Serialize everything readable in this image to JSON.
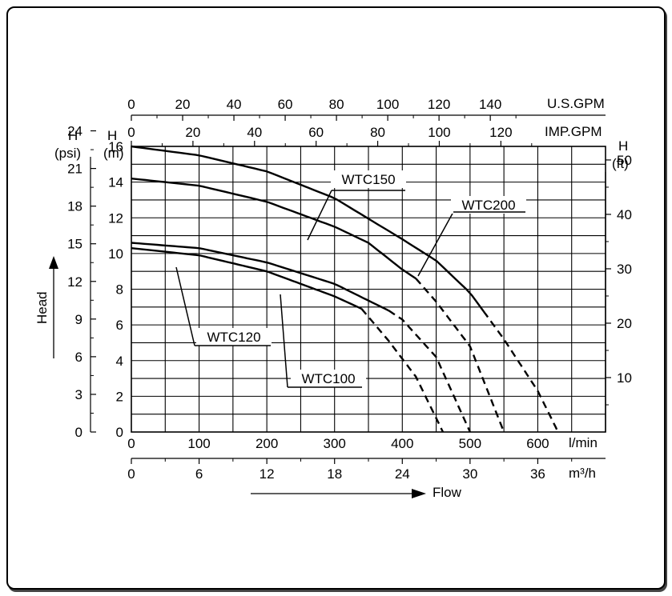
{
  "chart_data": {
    "type": "line",
    "xlabel": "Flow",
    "ylabel": "Head",
    "x_unit": "l/min",
    "x_range": [
      0,
      700
    ],
    "y_unit": "H (m)",
    "y_range": [
      0,
      16
    ],
    "grid": true,
    "x_ticks": [
      "0",
      "100",
      "200",
      "300",
      "400",
      "500",
      "600"
    ],
    "y_ticks": [
      "0",
      "2",
      "4",
      "6",
      "8",
      "10",
      "12",
      "14",
      "16"
    ],
    "secondary_axes": {
      "psi": {
        "label": "H",
        "unit": "(psi)",
        "ticks": [
          "0",
          "3",
          "6",
          "9",
          "12",
          "15",
          "18",
          "21",
          "24"
        ]
      },
      "ft": {
        "label": "H",
        "unit": "(ft)",
        "ticks": [
          "10",
          "20",
          "30",
          "40",
          "50"
        ]
      },
      "us_gpm": {
        "unit": "U.S.GPM",
        "ticks": [
          "0",
          "20",
          "40",
          "60",
          "80",
          "100",
          "120",
          "140"
        ]
      },
      "imp_gpm": {
        "unit": "IMP.GPM",
        "ticks": [
          "0",
          "20",
          "40",
          "60",
          "80",
          "100",
          "120"
        ]
      },
      "m3h": {
        "unit": "m³/h",
        "ticks": [
          "0",
          "6",
          "12",
          "18",
          "24",
          "30",
          "36"
        ]
      }
    },
    "series": [
      {
        "name": "WTC150",
        "points": [
          [
            0,
            14.2
          ],
          [
            100,
            13.8
          ],
          [
            200,
            12.9
          ],
          [
            300,
            11.5
          ],
          [
            350,
            10.6
          ],
          [
            400,
            9.1
          ],
          [
            420,
            8.6
          ],
          [
            450,
            7.3
          ],
          [
            500,
            4.8
          ],
          [
            550,
            0
          ]
        ],
        "dashed_from": 420
      },
      {
        "name": "WTC200",
        "points": [
          [
            0,
            16
          ],
          [
            100,
            15.5
          ],
          [
            200,
            14.6
          ],
          [
            300,
            13.1
          ],
          [
            400,
            10.8
          ],
          [
            450,
            9.6
          ],
          [
            500,
            7.8
          ],
          [
            550,
            5.2
          ],
          [
            600,
            2.3
          ],
          [
            630,
            0
          ]
        ],
        "dashed_from": 520
      },
      {
        "name": "WTC120",
        "points": [
          [
            0,
            10.6
          ],
          [
            100,
            10.3
          ],
          [
            200,
            9.5
          ],
          [
            300,
            8.3
          ],
          [
            380,
            6.8
          ],
          [
            400,
            6.3
          ],
          [
            450,
            4.2
          ],
          [
            500,
            0
          ]
        ],
        "dashed_from": 380
      },
      {
        "name": "WTC100",
        "points": [
          [
            0,
            10.3
          ],
          [
            100,
            9.9
          ],
          [
            200,
            9
          ],
          [
            300,
            7.6
          ],
          [
            340,
            6.9
          ],
          [
            380,
            5.1
          ],
          [
            420,
            3.1
          ],
          [
            460,
            0
          ]
        ],
        "dashed_from": 340
      }
    ]
  }
}
